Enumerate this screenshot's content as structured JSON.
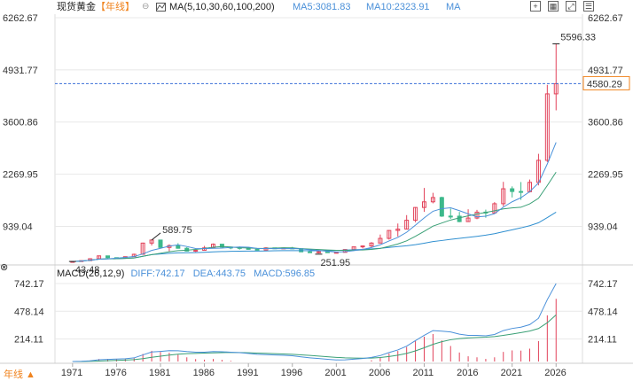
{
  "header": {
    "title": "现货黄金",
    "period": "【年线】",
    "ma_label": "MA(5,10,30,60,100,200)",
    "ma5": "MA5:3081.83",
    "ma10": "MA10:2323.91",
    "ma_more": "MA"
  },
  "price_axis": {
    "left": [
      "6262.67",
      "4931.77",
      "3600.86",
      "2269.95",
      "939.04"
    ],
    "right": [
      "6262.67",
      "4931.77",
      "3600.86",
      "2269.95",
      "939.04"
    ],
    "current_price": "4580.29"
  },
  "annotations": {
    "high": "5596.33",
    "peak_1980": "589.75",
    "low_1999": "251.95",
    "start_low": "43.48"
  },
  "macd": {
    "label": "MACD(26,12,9)",
    "diff": "DIFF:742.17",
    "dea": "DEA:443.75",
    "macd": "MACD:596.85",
    "axis_left": [
      "742.17",
      "478.14",
      "214.11"
    ],
    "axis_right": [
      "742.17",
      "478.14",
      "214.11"
    ]
  },
  "x_axis": [
    "1971",
    "1976",
    "1981",
    "1986",
    "1991",
    "1996",
    "2001",
    "2006",
    "2011",
    "2016",
    "2021",
    "2026"
  ],
  "period_button": "年线 ▲",
  "colors": {
    "up": "#e2435a",
    "down": "#3db88b",
    "ma5": "#4a90d9",
    "ma10": "#3aa076",
    "ma30": "#2f8fd0",
    "grid": "#e8e8e8"
  },
  "chart_data": {
    "type": "candlestick",
    "title": "现货黄金",
    "years": [
      1971,
      1972,
      1973,
      1974,
      1975,
      1976,
      1977,
      1978,
      1979,
      1980,
      1981,
      1982,
      1983,
      1984,
      1985,
      1986,
      1987,
      1988,
      1989,
      1990,
      1991,
      1992,
      1993,
      1994,
      1995,
      1996,
      1997,
      1998,
      1999,
      2000,
      2001,
      2002,
      2003,
      2004,
      2005,
      2006,
      2007,
      2008,
      2009,
      2010,
      2011,
      2012,
      2013,
      2014,
      2015,
      2016,
      2017,
      2018,
      2019,
      2020,
      2021,
      2022,
      2023,
      2024,
      2025,
      2026
    ],
    "ohlc": [
      [
        43.5,
        44,
        43.48,
        43.6
      ],
      [
        43.6,
        70,
        43,
        64
      ],
      [
        64,
        127,
        64,
        112
      ],
      [
        112,
        195,
        112,
        186
      ],
      [
        186,
        186,
        128,
        140
      ],
      [
        140,
        140,
        103,
        135
      ],
      [
        135,
        170,
        130,
        165
      ],
      [
        165,
        243,
        165,
        226
      ],
      [
        226,
        524,
        215,
        512
      ],
      [
        512,
        589.75,
        450,
        590
      ],
      [
        590,
        590,
        390,
        400
      ],
      [
        400,
        480,
        300,
        448
      ],
      [
        448,
        510,
        370,
        380
      ],
      [
        380,
        410,
        300,
        308
      ],
      [
        308,
        340,
        285,
        327
      ],
      [
        327,
        440,
        325,
        390
      ],
      [
        390,
        502,
        390,
        484
      ],
      [
        484,
        485,
        395,
        410
      ],
      [
        410,
        420,
        356,
        399
      ],
      [
        399,
        425,
        345,
        386
      ],
      [
        386,
        403,
        344,
        353
      ],
      [
        353,
        360,
        330,
        333
      ],
      [
        333,
        406,
        326,
        390
      ],
      [
        390,
        396,
        369,
        383
      ],
      [
        383,
        396,
        372,
        387
      ],
      [
        387,
        415,
        367,
        369
      ],
      [
        369,
        369,
        283,
        289
      ],
      [
        289,
        313,
        272,
        288
      ],
      [
        288,
        326,
        251.95,
        290
      ],
      [
        290,
        313,
        263,
        272
      ],
      [
        272,
        293,
        255,
        276
      ],
      [
        276,
        354,
        277,
        347
      ],
      [
        347,
        416,
        320,
        416
      ],
      [
        416,
        454,
        375,
        438
      ],
      [
        438,
        538,
        411,
        513
      ],
      [
        513,
        730,
        513,
        632
      ],
      [
        632,
        845,
        601,
        834
      ],
      [
        834,
        1011,
        680,
        869
      ],
      [
        869,
        1226,
        869,
        1095
      ],
      [
        1095,
        1430,
        1044,
        1421
      ],
      [
        1421,
        1920,
        1308,
        1565
      ],
      [
        1565,
        1795,
        1527,
        1675
      ],
      [
        1675,
        1696,
        1180,
        1201
      ],
      [
        1201,
        1392,
        1131,
        1199
      ],
      [
        1199,
        1307,
        1046,
        1060
      ],
      [
        1060,
        1375,
        1060,
        1151
      ],
      [
        1151,
        1358,
        1122,
        1302
      ],
      [
        1302,
        1366,
        1160,
        1282
      ],
      [
        1282,
        1557,
        1266,
        1517
      ],
      [
        1517,
        2075,
        1451,
        1898
      ],
      [
        1898,
        1959,
        1677,
        1829
      ],
      [
        1829,
        2070,
        1615,
        1824
      ],
      [
        1824,
        2135,
        1804,
        2062
      ],
      [
        2062,
        2790,
        1985,
        2624
      ],
      [
        2624,
        4550,
        2580,
        4320
      ],
      [
        4320,
        5596.33,
        3900,
        4580.29
      ]
    ],
    "ma5_last": 3081.83,
    "ma10_last": 2323.91,
    "price_range": [
      0,
      6262.67
    ],
    "macd": {
      "diff_last": 742.17,
      "dea_last": 443.75,
      "macd_last": 596.85,
      "range": [
        0,
        742.17
      ]
    }
  }
}
